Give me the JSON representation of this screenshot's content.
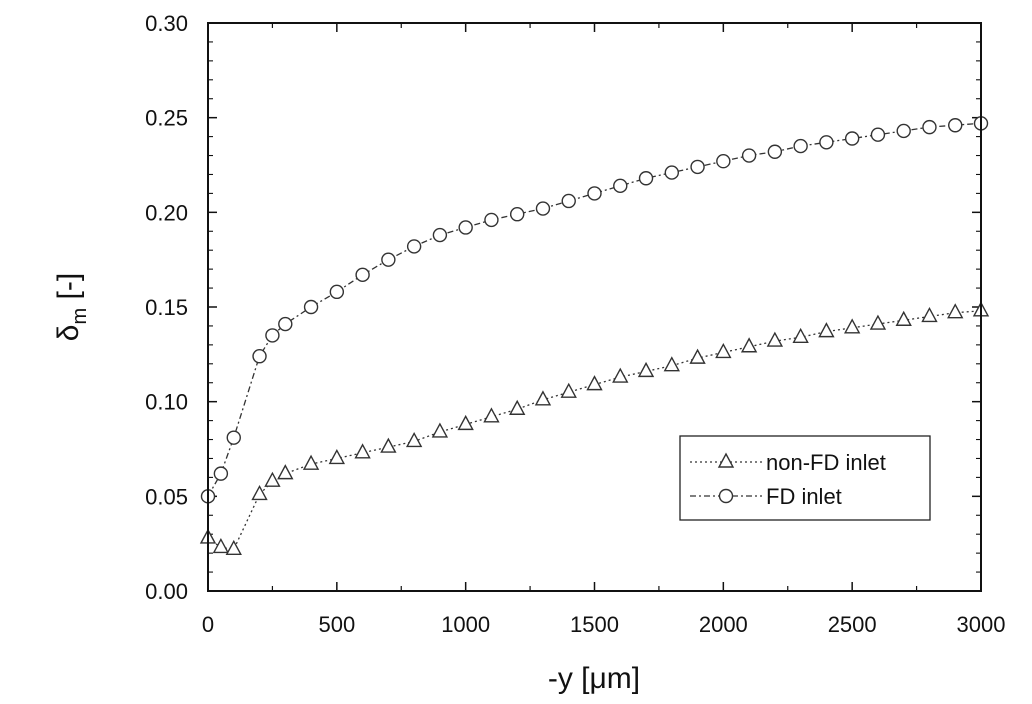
{
  "chart_data": {
    "type": "line",
    "xlabel": "-y [μm]",
    "ylabel": "δ",
    "ylabel_subscript": "m",
    "ylabel_suffix": " [-]",
    "xlim": [
      0,
      3000
    ],
    "ylim": [
      0.0,
      0.3
    ],
    "grid": false,
    "legend_position": "lower-right",
    "x_ticks": [
      0,
      500,
      1000,
      1500,
      2000,
      2500,
      3000
    ],
    "x_tick_labels": [
      "0",
      "500",
      "1000",
      "1500",
      "2000",
      "2500",
      "3000"
    ],
    "y_ticks": [
      0.0,
      0.05,
      0.1,
      0.15,
      0.2,
      0.25,
      0.3
    ],
    "y_tick_labels": [
      "0.00",
      "0.05",
      "0.10",
      "0.15",
      "0.20",
      "0.25",
      "0.30"
    ],
    "series": [
      {
        "name": "non-FD inlet",
        "marker": "triangle",
        "line_style": "dotted",
        "x": [
          0,
          50,
          100,
          200,
          250,
          300,
          400,
          500,
          600,
          700,
          800,
          900,
          1000,
          1100,
          1200,
          1300,
          1400,
          1500,
          1600,
          1700,
          1800,
          1900,
          2000,
          2100,
          2200,
          2300,
          2400,
          2500,
          2600,
          2700,
          2800,
          2900,
          3000
        ],
        "y": [
          0.028,
          0.023,
          0.022,
          0.051,
          0.058,
          0.062,
          0.067,
          0.07,
          0.073,
          0.076,
          0.079,
          0.084,
          0.088,
          0.092,
          0.096,
          0.101,
          0.105,
          0.109,
          0.113,
          0.116,
          0.119,
          0.123,
          0.126,
          0.129,
          0.132,
          0.134,
          0.137,
          0.139,
          0.141,
          0.143,
          0.145,
          0.147,
          0.148
        ]
      },
      {
        "name": "FD inlet",
        "marker": "circle",
        "line_style": "dash-dot",
        "x": [
          0,
          50,
          100,
          200,
          250,
          300,
          400,
          500,
          600,
          700,
          800,
          900,
          1000,
          1100,
          1200,
          1300,
          1400,
          1500,
          1600,
          1700,
          1800,
          1900,
          2000,
          2100,
          2200,
          2300,
          2400,
          2500,
          2600,
          2700,
          2800,
          2900,
          3000
        ],
        "y": [
          0.05,
          0.062,
          0.081,
          0.124,
          0.135,
          0.141,
          0.15,
          0.158,
          0.167,
          0.175,
          0.182,
          0.188,
          0.192,
          0.196,
          0.199,
          0.202,
          0.206,
          0.21,
          0.214,
          0.218,
          0.221,
          0.224,
          0.227,
          0.23,
          0.232,
          0.235,
          0.237,
          0.239,
          0.241,
          0.243,
          0.245,
          0.246,
          0.247
        ]
      }
    ]
  }
}
